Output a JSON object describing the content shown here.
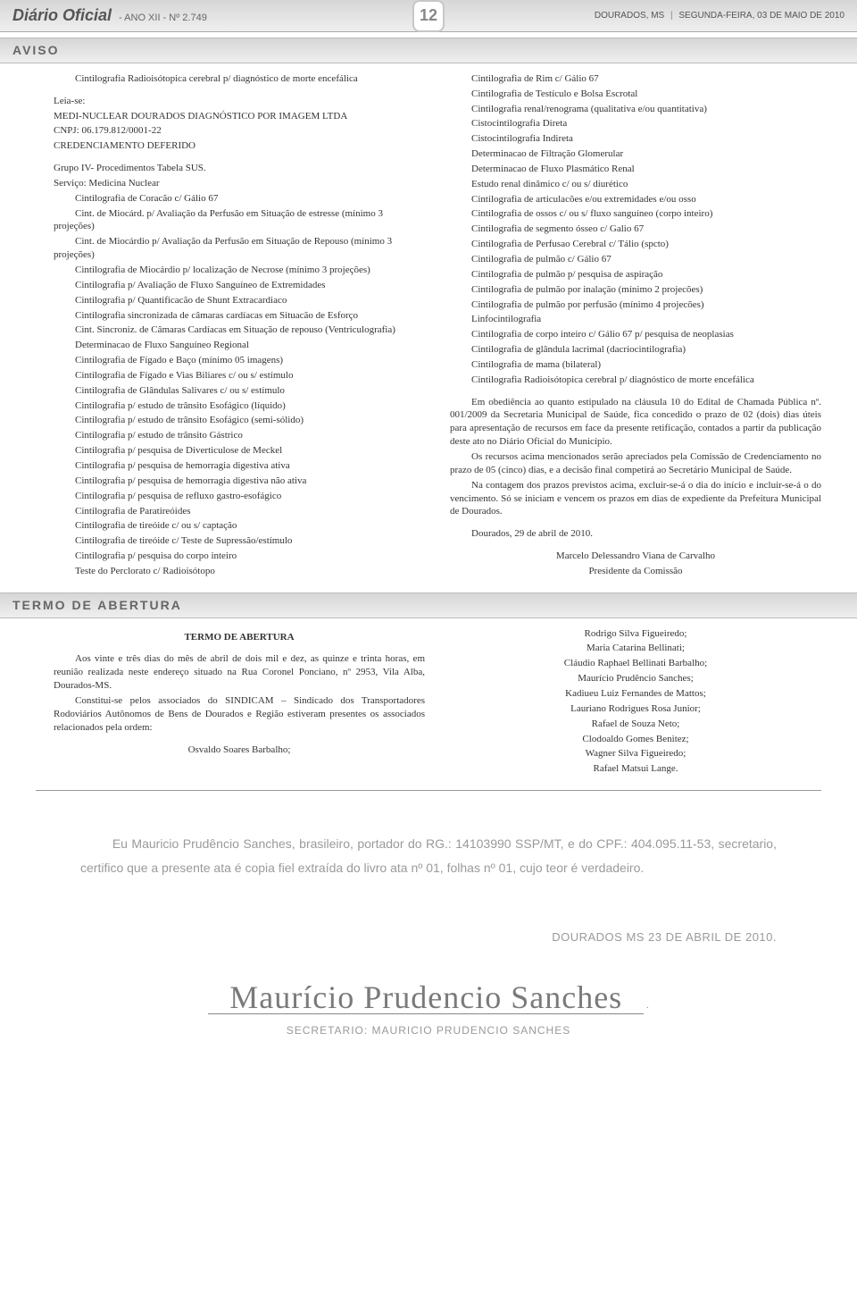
{
  "header": {
    "title": "Diário Oficial",
    "sub": "-  ANO XII  -  Nº 2.749",
    "page_number": "12",
    "city": "DOURADOS, MS",
    "date": "SEGUNDA-FEIRA, 03 DE MAIO DE 2010"
  },
  "aviso": {
    "label": "AVISO",
    "left": {
      "intro": "Cintilografia Radioisótopica cerebral p/ diagnóstico de morte encefálica",
      "leia": "Leia-se:",
      "org": "MEDI-NUCLEAR DOURADOS DIAGNÓSTICO POR IMAGEM LTDA",
      "cnpj": "CNPJ: 06.179.812/0001-22",
      "cred": "CREDENCIAMENTO DEFERIDO",
      "grupo": "Grupo IV- Procedimentos Tabela SUS.",
      "servico": "Serviço: Medicina Nuclear",
      "items": [
        "Cintilografia de Coracão c/ Gálio 67",
        "Cint. de Miocárd. p/ Avaliação da Perfusão em Situação de estresse (mínimo 3 projeções)",
        "Cint. de Miocárdio p/ Avaliação da Perfusão em Situação de Repouso (mínimo 3 projeções)",
        "Cintilografia de Miocárdio p/ localização de Necrose (mínimo 3 projeções)",
        "Cintilografia p/ Avaliação de Fluxo Sanguíneo de Extremidades",
        "Cintilografia p/ Quantificacão de Shunt Extracardiaco",
        "Cintilografia sincronizada de câmaras cardíacas em Situacão de Esforço",
        "Cint. Sincroniz. de Câmaras Cardíacas em Situação de repouso (Ventriculografia)",
        "Determinacao de Fluxo Sanguíneo Regional",
        "Cintilografia de Fígado e Baço (mínimo 05 imagens)",
        "Cintilografia de Fígado e Vias Biliares c/ ou s/ estímulo",
        "Cintilografia de Glândulas Salivares c/ ou s/ estímulo",
        "Cintilografia p/ estudo de trânsito Esofágico (líquido)",
        "Cintilografia p/ estudo de trânsito Esofágico (semi-sólido)",
        "Cintilografia p/ estudo de trânsito Gástrico",
        "Cintilografia p/ pesquisa de Diverticulose de Meckel",
        "Cintilografia p/ pesquisa de hemorragia digestiva ativa",
        "Cintilografia p/ pesquisa de hemorragia digestiva não ativa",
        "Cintilografia p/ pesquisa de refluxo gastro-esofágico",
        "Cintilografia de Paratireóides",
        "Cintilografia de tireóide c/ ou s/ captação",
        "Cintilografia de tireóide c/ Teste de Supressão/estímulo",
        "Cintilografia p/ pesquisa do corpo inteiro",
        "Teste do Perclorato c/ Radioisótopo"
      ]
    },
    "right": {
      "items": [
        "Cintilografia de Rim c/ Gálio 67",
        "Cintilografia de Testículo e Bolsa Escrotal",
        "Cintilografia renal/renograma (qualitativa e/ou quantitativa)",
        "Cistocintilografia Direta",
        "Cistocintilografia Indireta",
        "Determinacao de Filtração Glomerular",
        "Determinacao de Fluxo Plasmático Renal",
        "Estudo renal dinâmico c/ ou s/ diurético",
        "Cintilografia de articulacões e/ou extremidades e/ou osso",
        "Cintilografia de ossos c/ ou s/ fluxo sanguíneo (corpo inteiro)",
        "Cintilografia de segmento ósseo c/ Galio 67",
        "Cintilografia de Perfusao Cerebral c/ Tálio (spcto)",
        "Cintilografia de pulmão c/ Gálio 67",
        "Cintilografia de pulmão p/ pesquisa de aspiração",
        "Cintilografia de pulmão por inalação (mínimo 2 projecões)",
        "Cintilografia de pulmão por perfusão (mínimo 4 projecões)",
        "Linfocintilografia",
        "Cintilografia de corpo inteiro c/ Gálio 67 p/ pesquisa de neoplasias",
        "Cintilografia de glândula lacrimal (dacriocintilografia)",
        "Cintilografia de mama (bilateral)",
        "Cintilografia Radioisótopica cerebral p/ diagnóstico de morte encefálica"
      ],
      "p1": "Em obediência ao quanto estipulado na cláusula 10 do Edital de Chamada Pública nº. 001/2009 da Secretaria Municipal de Saúde, fica concedido o prazo de 02 (dois) dias úteis para apresentação de recursos em face da presente retificação, contados a partir da publicação deste ato no Diário Oficial do Município.",
      "p2": "Os recursos acima mencionados serão apreciados pela Comissão de Credenciamento no prazo de 05 (cinco) dias, e a decisão final competirá ao Secretário Municipal de Saúde.",
      "p3": "Na contagem dos prazos previstos acima, excluir-se-á o dia do início e incluir-se-á o do vencimento. Só se iniciam e vencem os prazos em dias de expediente da Prefeitura Municipal de Dourados.",
      "date": "Dourados, 29 de abril de 2010.",
      "sig_name": "Marcelo Delessandro Viana de Carvalho",
      "sig_role": "Presidente da Comissão"
    }
  },
  "termo": {
    "label": "TERMO DE ABERTURA",
    "title": "TERMO DE ABERTURA",
    "left_p1": "Aos vinte e três dias do mês de abril de dois mil e dez, as quinze e trinta horas, em reunião realizada neste endereço situado na Rua Coronel Ponciano, nº 2953, Vila Alba, Dourados-MS.",
    "left_p2": "Constitui-se pelos associados do SINDICAM – Sindicado dos Transportadores Rodoviários Autônomos de Bens de Dourados e Região estiveram presentes os associados relacionados pela ordem:",
    "left_name": "Osvaldo Soares Barbalho;",
    "right_names": [
      "Rodrigo Silva Figueiredo;",
      "Maria Catarina Bellinati;",
      "Cláudio Raphael Bellinati Barbalho;",
      "Maurício Prudêncio Sanches;",
      "Kadiueu Luiz Fernandes de Mattos;",
      "Lauriano Rodrigues Rosa Junior;",
      "Rafael de Souza Neto;",
      "Clodoaldo Gomes Benitez;",
      "Wagner Silva Figueiredo;",
      "Rafael Matsui Lange."
    ]
  },
  "cert": {
    "text": "Eu Mauricio Prudêncio Sanches, brasileiro, portador do RG.: 14103990 SSP/MT, e do CPF.: 404.095.11-53, secretario, certifico que a presente ata é copia fiel extraída do livro ata nº 01, folhas nº 01, cujo teor é verdadeiro.",
    "date": "DOURADOS MS 23 DE ABRIL DE 2010.",
    "signature_script": "Maurício Prudencio Sanches",
    "caption": "SECRETARIO: MAURICIO PRUDENCIO SANCHES"
  }
}
